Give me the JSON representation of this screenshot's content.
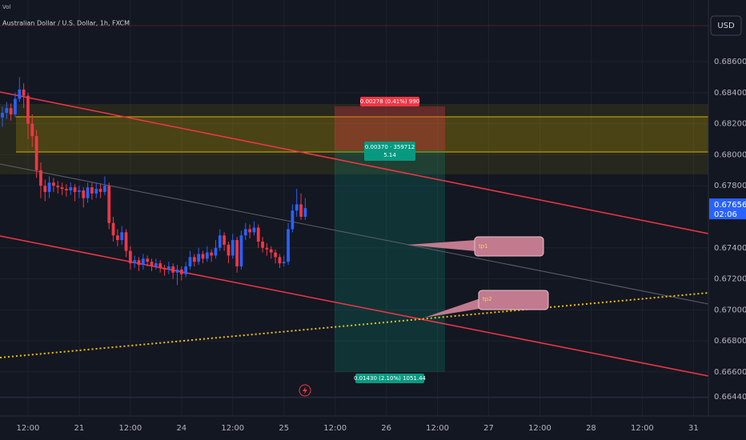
{
  "chart_data": {
    "type": "candlestick",
    "title": "Australian Dollar / U.S. Dollar, 1h, FXCM",
    "volume_label": "Vol",
    "currency": "USD",
    "last_price": 0.67656,
    "countdown": "02:06",
    "up_color": "#2962ff",
    "down_color": "#f23645",
    "grid": true,
    "open": [
      0.6824,
      0.6827,
      0.683,
      0.6826,
      0.6836,
      0.6842,
      0.6838,
      0.682,
      0.6812,
      0.679,
      0.678,
      0.6776,
      0.6782,
      0.678,
      0.6779,
      0.6778,
      0.6777,
      0.6779,
      0.6776,
      0.6777,
      0.6772,
      0.6779,
      0.6775,
      0.6778,
      0.6776,
      0.678,
      0.6756,
      0.6748,
      0.6745,
      0.675,
      0.6738,
      0.673,
      0.6732,
      0.6729,
      0.6733,
      0.6731,
      0.6728,
      0.673,
      0.6727,
      0.6726,
      0.6728,
      0.6724,
      0.6726,
      0.6723,
      0.6728,
      0.6734,
      0.6731,
      0.6736,
      0.6733,
      0.6737,
      0.6735,
      0.674,
      0.6748,
      0.6742,
      0.6735,
      0.6745,
      0.6728,
      0.6748,
      0.6752,
      0.675,
      0.6753,
      0.6744,
      0.674,
      0.6739,
      0.6737,
      0.6734,
      0.673,
      0.6731,
      0.6752,
      0.6764,
      0.6768,
      0.676
    ],
    "high": [
      0.6831,
      0.6834,
      0.6833,
      0.684,
      0.685,
      0.6846,
      0.684,
      0.6826,
      0.6816,
      0.6795,
      0.6784,
      0.6786,
      0.6785,
      0.6783,
      0.6782,
      0.6781,
      0.6782,
      0.6781,
      0.678,
      0.6779,
      0.6782,
      0.6782,
      0.6782,
      0.6781,
      0.6786,
      0.6782,
      0.676,
      0.6752,
      0.6754,
      0.6752,
      0.6741,
      0.6735,
      0.6734,
      0.6736,
      0.6735,
      0.6733,
      0.6733,
      0.6732,
      0.6729,
      0.6731,
      0.673,
      0.6729,
      0.6728,
      0.6731,
      0.6738,
      0.6736,
      0.674,
      0.6738,
      0.6741,
      0.6739,
      0.6745,
      0.6752,
      0.675,
      0.6744,
      0.6749,
      0.6747,
      0.6751,
      0.6756,
      0.6755,
      0.6757,
      0.6755,
      0.6747,
      0.6743,
      0.6741,
      0.6739,
      0.6736,
      0.6735,
      0.6756,
      0.6768,
      0.6778,
      0.6775,
      0.6772
    ],
    "low": [
      0.6818,
      0.6823,
      0.6822,
      0.6824,
      0.6834,
      0.683,
      0.681,
      0.6805,
      0.6785,
      0.6772,
      0.677,
      0.6772,
      0.6776,
      0.6775,
      0.6774,
      0.6773,
      0.6774,
      0.677,
      0.6772,
      0.6766,
      0.6769,
      0.6771,
      0.6772,
      0.6772,
      0.6774,
      0.6752,
      0.6744,
      0.6741,
      0.6742,
      0.6734,
      0.6726,
      0.6727,
      0.6725,
      0.6726,
      0.6728,
      0.6725,
      0.6726,
      0.6724,
      0.6722,
      0.6723,
      0.672,
      0.6716,
      0.6719,
      0.6721,
      0.6726,
      0.6728,
      0.6729,
      0.673,
      0.6731,
      0.6731,
      0.6733,
      0.6738,
      0.6738,
      0.673,
      0.6733,
      0.6724,
      0.6726,
      0.6745,
      0.6746,
      0.6748,
      0.674,
      0.6737,
      0.6735,
      0.6733,
      0.673,
      0.6727,
      0.6728,
      0.6729,
      0.675,
      0.676,
      0.6758,
      0.6758
    ],
    "close": [
      0.6827,
      0.683,
      0.6826,
      0.6836,
      0.6842,
      0.6838,
      0.682,
      0.6812,
      0.679,
      0.678,
      0.6776,
      0.6782,
      0.678,
      0.6779,
      0.6778,
      0.6777,
      0.6779,
      0.6776,
      0.6777,
      0.6772,
      0.6779,
      0.6775,
      0.6778,
      0.6776,
      0.678,
      0.6756,
      0.6748,
      0.6745,
      0.675,
      0.6738,
      0.673,
      0.6732,
      0.6729,
      0.6733,
      0.6731,
      0.6728,
      0.673,
      0.6727,
      0.6726,
      0.6728,
      0.6724,
      0.6726,
      0.6723,
      0.6728,
      0.6734,
      0.6731,
      0.6736,
      0.6733,
      0.6737,
      0.6735,
      0.674,
      0.6748,
      0.6742,
      0.6735,
      0.6745,
      0.6728,
      0.6748,
      0.6752,
      0.675,
      0.6753,
      0.6744,
      0.674,
      0.6739,
      0.6737,
      0.6734,
      0.673,
      0.6731,
      0.6752,
      0.6764,
      0.6768,
      0.676,
      0.67656
    ],
    "xlim": [
      -0.56,
      165.5
    ],
    "xticks": [
      {
        "value": 6,
        "label": "12:00"
      },
      {
        "value": 18,
        "label": "21"
      },
      {
        "value": 30,
        "label": "12:00"
      },
      {
        "value": 42,
        "label": "24"
      },
      {
        "value": 54,
        "label": "12:00"
      },
      {
        "value": 66,
        "label": "25"
      },
      {
        "value": 78,
        "label": "12:00"
      },
      {
        "value": 90,
        "label": "26"
      },
      {
        "value": 102,
        "label": "12:00"
      },
      {
        "value": 114,
        "label": "27"
      },
      {
        "value": 126,
        "label": "12:00"
      },
      {
        "value": 138,
        "label": "28"
      },
      {
        "value": 150,
        "label": "12:00"
      },
      {
        "value": 162,
        "label": "31"
      }
    ],
    "ylim": [
      0.66316,
      0.68997
    ],
    "yticks": [
      {
        "value": 0.686,
        "label": "0.68600"
      },
      {
        "value": 0.684,
        "label": "0.68400"
      },
      {
        "value": 0.682,
        "label": "0.68200"
      },
      {
        "value": 0.68,
        "label": "0.68000"
      },
      {
        "value": 0.678,
        "label": "0.67800"
      },
      {
        "value": 0.674,
        "label": "0.67400"
      },
      {
        "value": 0.672,
        "label": "0.67200"
      },
      {
        "value": 0.67,
        "label": "0.67000"
      },
      {
        "value": 0.668,
        "label": "0.66800"
      },
      {
        "value": 0.666,
        "label": "0.66600"
      },
      {
        "value": 0.6644,
        "label": "0.66440"
      }
    ],
    "annotations": {
      "risk": "0.00278 (0.41%) 990",
      "entry_1": "0.00370 · 359712",
      "entry_2": "5.14",
      "target": "0.01430 (2.10%) 1051.44",
      "tp1": "tp1",
      "tp2": "tp2"
    }
  }
}
